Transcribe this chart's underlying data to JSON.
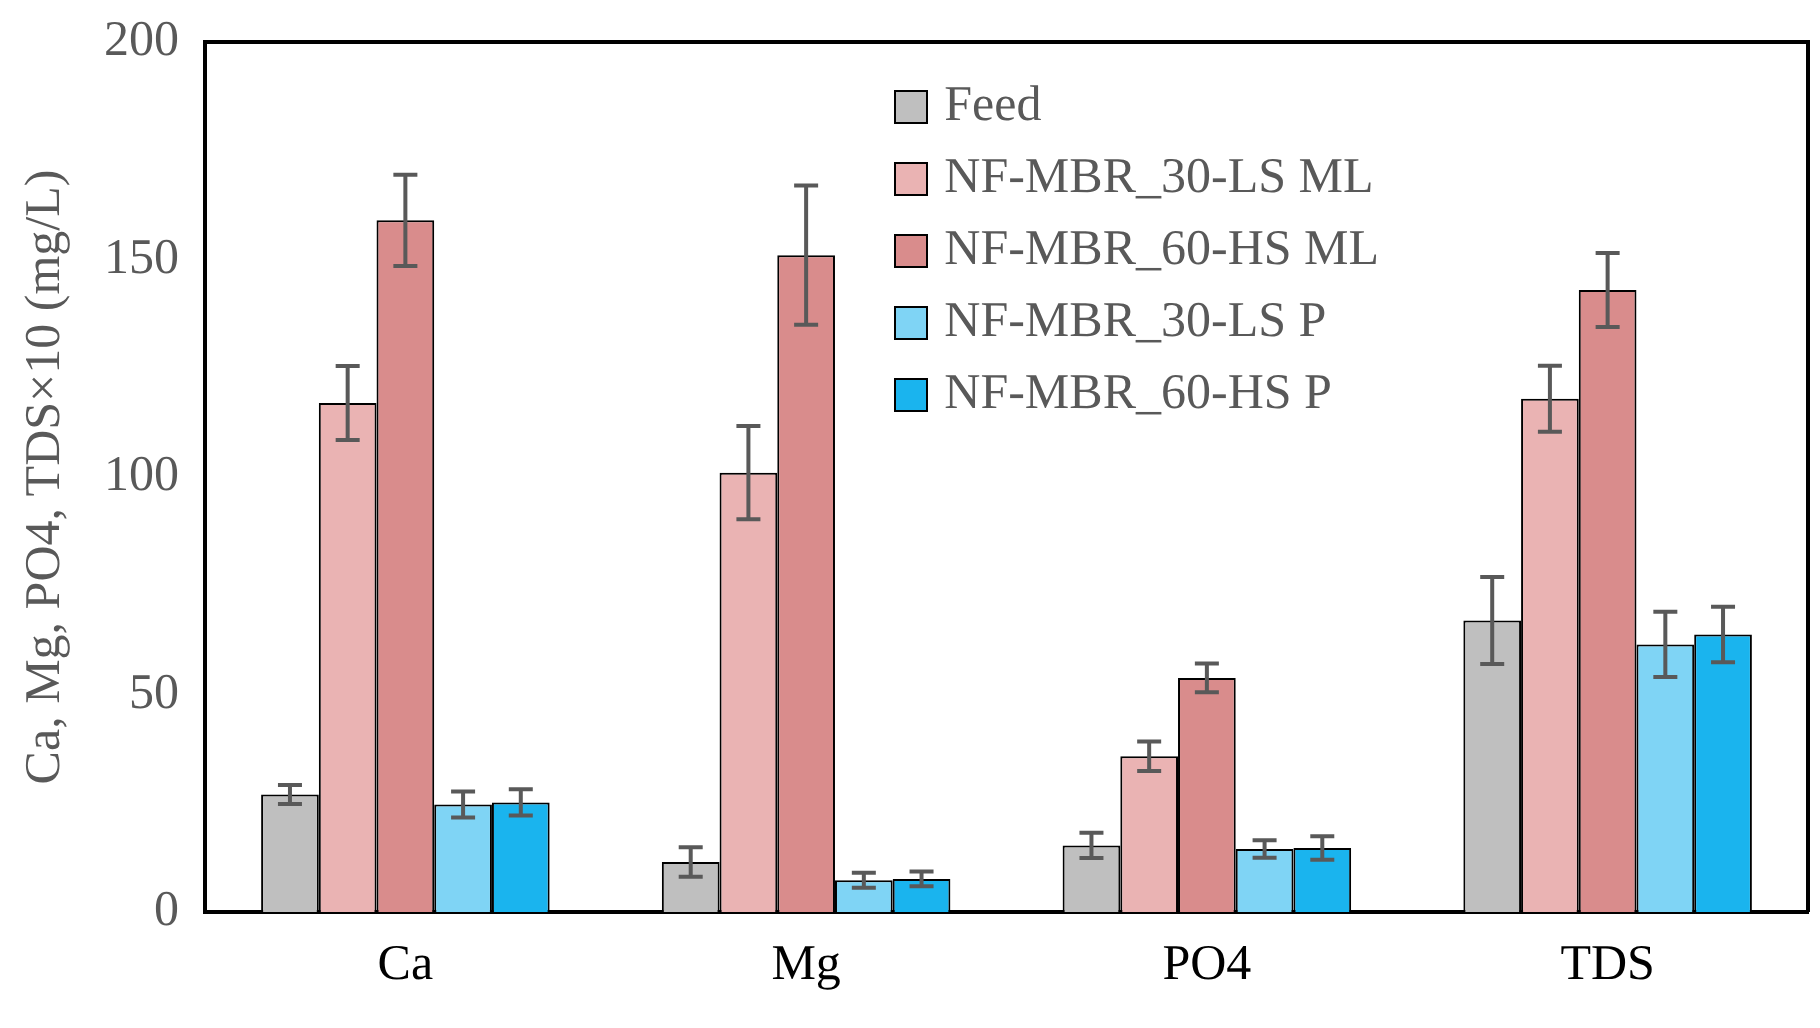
{
  "chart_data": {
    "type": "bar",
    "ylabel": "Ca, Mg, PO4, TDS×10 (mg/L)",
    "categories": [
      "Ca",
      "Mg",
      "PO4",
      "TDS"
    ],
    "series": [
      {
        "name": "Feed",
        "color": "#bfbfbf",
        "values": [
          27,
          11.5,
          15.3,
          67
        ],
        "errors": [
          2.2,
          3.4,
          2.9,
          10
        ]
      },
      {
        "name": "NF-MBR_30-LS ML",
        "color": "#eab3b3",
        "values": [
          117,
          101,
          35.8,
          118
        ],
        "errors": [
          8.5,
          10.7,
          3.4,
          7.6
        ]
      },
      {
        "name": "NF-MBR_60-HS ML",
        "color": "#d98c8c",
        "values": [
          159,
          151,
          53.8,
          143
        ],
        "errors": [
          10.5,
          16,
          3.3,
          8.5
        ]
      },
      {
        "name": "NF-MBR_30-LS P",
        "color": "#7fd4f5",
        "values": [
          24.7,
          7.3,
          14.5,
          61.5
        ],
        "errors": [
          3,
          1.7,
          2,
          7.5
        ]
      },
      {
        "name": "NF-MBR_60-HS P",
        "color": "#1ab4ee",
        "values": [
          25.2,
          7.6,
          14.7,
          63.8
        ],
        "errors": [
          3,
          1.7,
          2.7,
          6.4
        ]
      }
    ],
    "ylim": [
      0,
      200
    ],
    "yticks": [
      0,
      50,
      100,
      150,
      200
    ],
    "grid": false,
    "legend": "top right"
  }
}
